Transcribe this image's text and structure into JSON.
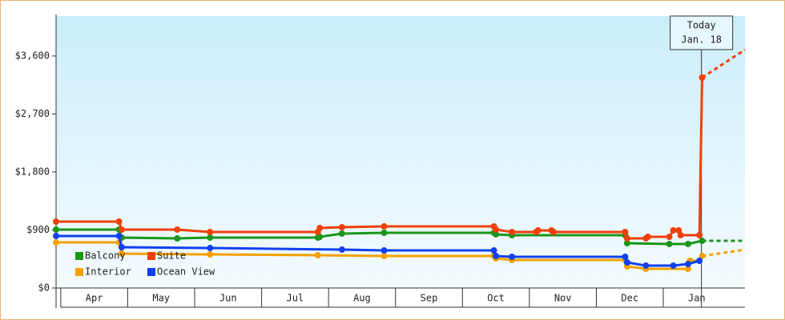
{
  "chart_data": {
    "type": "line",
    "ylim": [
      0,
      4220
    ],
    "yticks": [
      {
        "value": 0,
        "label": "$0"
      },
      {
        "value": 900,
        "label": "$900"
      },
      {
        "value": 1800,
        "label": "$1,800"
      },
      {
        "value": 2700,
        "label": "$2,700"
      },
      {
        "value": 3600,
        "label": "$3,600"
      }
    ],
    "xlim": [
      3.93,
      14.22
    ],
    "xticks": [
      {
        "value": 4.5,
        "label": "Apr"
      },
      {
        "value": 5.5,
        "label": "May"
      },
      {
        "value": 6.5,
        "label": "Jun"
      },
      {
        "value": 7.5,
        "label": "Jul"
      },
      {
        "value": 8.5,
        "label": "Aug"
      },
      {
        "value": 9.5,
        "label": "Sep"
      },
      {
        "value": 10.5,
        "label": "Oct"
      },
      {
        "value": 11.5,
        "label": "Nov"
      },
      {
        "value": 12.5,
        "label": "Dec"
      },
      {
        "value": 13.5,
        "label": "Jan"
      }
    ],
    "today": {
      "x": 13.57,
      "label": [
        "Today",
        "Jan. 18"
      ]
    },
    "forecast_x": [
      13.58,
      14.22
    ],
    "legend": "bottom-left",
    "series": [
      {
        "name": "Balcony",
        "color": "#1a961a",
        "x": [
          3.93,
          4.87,
          4.91,
          5.74,
          6.23,
          7.84,
          7.87,
          8.2,
          8.83,
          10.47,
          10.5,
          10.74,
          12.43,
          12.46,
          13.09,
          13.37,
          13.58
        ],
        "values": [
          906,
          906,
          782,
          769,
          782,
          782,
          794,
          844,
          856,
          856,
          832,
          819,
          819,
          695,
          683,
          683,
          732
        ],
        "forecast_values": [
          732,
          732
        ]
      },
      {
        "name": "Suite",
        "color": "#f0400a",
        "x": [
          3.93,
          4.87,
          4.91,
          5.74,
          6.23,
          7.84,
          7.87,
          8.2,
          8.83,
          10.47,
          10.5,
          10.74,
          11.1,
          11.13,
          11.33,
          11.36,
          12.43,
          12.46,
          12.74,
          12.77,
          13.09,
          13.15,
          13.23,
          13.26,
          13.54,
          13.58
        ],
        "values": [
          1030,
          1030,
          906,
          906,
          869,
          869,
          931,
          943,
          956,
          956,
          906,
          869,
          869,
          894,
          894,
          869,
          869,
          769,
          769,
          794,
          794,
          894,
          894,
          819,
          819,
          3264
        ],
        "forecast_values": [
          3264,
          3698
        ]
      },
      {
        "name": "Interior",
        "color": "#f5a000",
        "x": [
          3.93,
          4.87,
          4.91,
          6.23,
          7.84,
          8.83,
          10.47,
          10.5,
          10.74,
          12.43,
          12.46,
          12.74,
          13.37,
          13.4,
          13.54,
          13.58
        ],
        "values": [
          707,
          707,
          534,
          521,
          509,
          496,
          496,
          459,
          434,
          434,
          335,
          298,
          298,
          422,
          422,
          496
        ],
        "forecast_values": [
          496,
          596
        ]
      },
      {
        "name": "Ocean View",
        "color": "#1040f0",
        "x": [
          3.93,
          4.87,
          4.91,
          6.23,
          8.2,
          8.83,
          10.47,
          10.5,
          10.74,
          12.43,
          12.46,
          12.74,
          13.15,
          13.37,
          13.54
        ],
        "values": [
          807,
          807,
          633,
          620,
          596,
          583,
          583,
          496,
          484,
          484,
          397,
          347,
          347,
          372,
          422
        ],
        "forecast_values": [
          null,
          null
        ]
      }
    ]
  }
}
